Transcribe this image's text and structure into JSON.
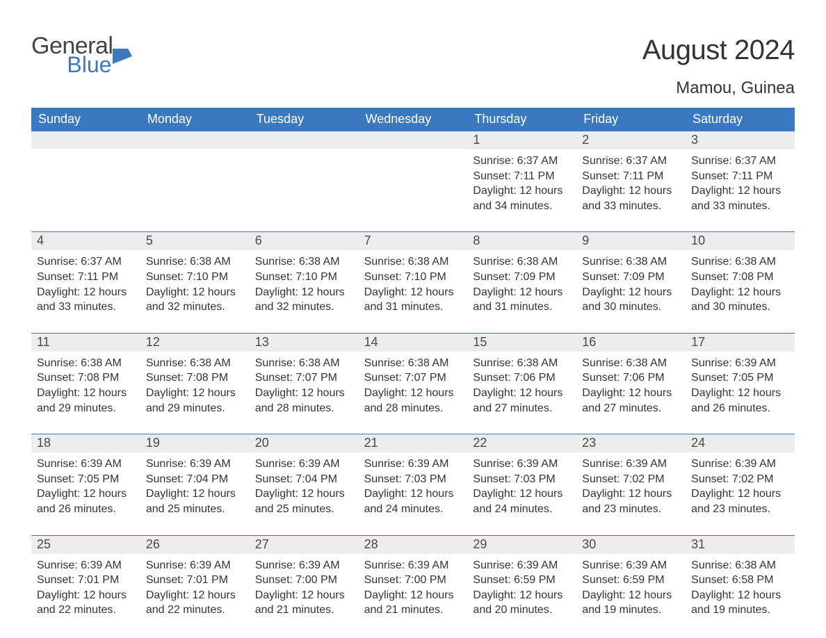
{
  "logo": {
    "general": "General",
    "blue": "Blue",
    "flag_color": "#3a78bf"
  },
  "title": "August 2024",
  "location": "Mamou, Guinea",
  "colors": {
    "header_bg": "#3a78bf",
    "header_text": "#ffffff",
    "daynum_bg": "#ededed",
    "body_text": "#333333",
    "border": "#3a78bf"
  },
  "day_headers": [
    "Sunday",
    "Monday",
    "Tuesday",
    "Wednesday",
    "Thursday",
    "Friday",
    "Saturday"
  ],
  "weeks": [
    [
      {
        "empty": true
      },
      {
        "empty": true
      },
      {
        "empty": true
      },
      {
        "empty": true
      },
      {
        "day": "1",
        "sunrise": "Sunrise: 6:37 AM",
        "sunset": "Sunset: 7:11 PM",
        "daylight": "Daylight: 12 hours and 34 minutes."
      },
      {
        "day": "2",
        "sunrise": "Sunrise: 6:37 AM",
        "sunset": "Sunset: 7:11 PM",
        "daylight": "Daylight: 12 hours and 33 minutes."
      },
      {
        "day": "3",
        "sunrise": "Sunrise: 6:37 AM",
        "sunset": "Sunset: 7:11 PM",
        "daylight": "Daylight: 12 hours and 33 minutes."
      }
    ],
    [
      {
        "day": "4",
        "sunrise": "Sunrise: 6:37 AM",
        "sunset": "Sunset: 7:11 PM",
        "daylight": "Daylight: 12 hours and 33 minutes."
      },
      {
        "day": "5",
        "sunrise": "Sunrise: 6:38 AM",
        "sunset": "Sunset: 7:10 PM",
        "daylight": "Daylight: 12 hours and 32 minutes."
      },
      {
        "day": "6",
        "sunrise": "Sunrise: 6:38 AM",
        "sunset": "Sunset: 7:10 PM",
        "daylight": "Daylight: 12 hours and 32 minutes."
      },
      {
        "day": "7",
        "sunrise": "Sunrise: 6:38 AM",
        "sunset": "Sunset: 7:10 PM",
        "daylight": "Daylight: 12 hours and 31 minutes."
      },
      {
        "day": "8",
        "sunrise": "Sunrise: 6:38 AM",
        "sunset": "Sunset: 7:09 PM",
        "daylight": "Daylight: 12 hours and 31 minutes."
      },
      {
        "day": "9",
        "sunrise": "Sunrise: 6:38 AM",
        "sunset": "Sunset: 7:09 PM",
        "daylight": "Daylight: 12 hours and 30 minutes."
      },
      {
        "day": "10",
        "sunrise": "Sunrise: 6:38 AM",
        "sunset": "Sunset: 7:08 PM",
        "daylight": "Daylight: 12 hours and 30 minutes."
      }
    ],
    [
      {
        "day": "11",
        "sunrise": "Sunrise: 6:38 AM",
        "sunset": "Sunset: 7:08 PM",
        "daylight": "Daylight: 12 hours and 29 minutes."
      },
      {
        "day": "12",
        "sunrise": "Sunrise: 6:38 AM",
        "sunset": "Sunset: 7:08 PM",
        "daylight": "Daylight: 12 hours and 29 minutes."
      },
      {
        "day": "13",
        "sunrise": "Sunrise: 6:38 AM",
        "sunset": "Sunset: 7:07 PM",
        "daylight": "Daylight: 12 hours and 28 minutes."
      },
      {
        "day": "14",
        "sunrise": "Sunrise: 6:38 AM",
        "sunset": "Sunset: 7:07 PM",
        "daylight": "Daylight: 12 hours and 28 minutes."
      },
      {
        "day": "15",
        "sunrise": "Sunrise: 6:38 AM",
        "sunset": "Sunset: 7:06 PM",
        "daylight": "Daylight: 12 hours and 27 minutes."
      },
      {
        "day": "16",
        "sunrise": "Sunrise: 6:38 AM",
        "sunset": "Sunset: 7:06 PM",
        "daylight": "Daylight: 12 hours and 27 minutes."
      },
      {
        "day": "17",
        "sunrise": "Sunrise: 6:39 AM",
        "sunset": "Sunset: 7:05 PM",
        "daylight": "Daylight: 12 hours and 26 minutes."
      }
    ],
    [
      {
        "day": "18",
        "sunrise": "Sunrise: 6:39 AM",
        "sunset": "Sunset: 7:05 PM",
        "daylight": "Daylight: 12 hours and 26 minutes."
      },
      {
        "day": "19",
        "sunrise": "Sunrise: 6:39 AM",
        "sunset": "Sunset: 7:04 PM",
        "daylight": "Daylight: 12 hours and 25 minutes."
      },
      {
        "day": "20",
        "sunrise": "Sunrise: 6:39 AM",
        "sunset": "Sunset: 7:04 PM",
        "daylight": "Daylight: 12 hours and 25 minutes."
      },
      {
        "day": "21",
        "sunrise": "Sunrise: 6:39 AM",
        "sunset": "Sunset: 7:03 PM",
        "daylight": "Daylight: 12 hours and 24 minutes."
      },
      {
        "day": "22",
        "sunrise": "Sunrise: 6:39 AM",
        "sunset": "Sunset: 7:03 PM",
        "daylight": "Daylight: 12 hours and 24 minutes."
      },
      {
        "day": "23",
        "sunrise": "Sunrise: 6:39 AM",
        "sunset": "Sunset: 7:02 PM",
        "daylight": "Daylight: 12 hours and 23 minutes."
      },
      {
        "day": "24",
        "sunrise": "Sunrise: 6:39 AM",
        "sunset": "Sunset: 7:02 PM",
        "daylight": "Daylight: 12 hours and 23 minutes."
      }
    ],
    [
      {
        "day": "25",
        "sunrise": "Sunrise: 6:39 AM",
        "sunset": "Sunset: 7:01 PM",
        "daylight": "Daylight: 12 hours and 22 minutes."
      },
      {
        "day": "26",
        "sunrise": "Sunrise: 6:39 AM",
        "sunset": "Sunset: 7:01 PM",
        "daylight": "Daylight: 12 hours and 22 minutes."
      },
      {
        "day": "27",
        "sunrise": "Sunrise: 6:39 AM",
        "sunset": "Sunset: 7:00 PM",
        "daylight": "Daylight: 12 hours and 21 minutes."
      },
      {
        "day": "28",
        "sunrise": "Sunrise: 6:39 AM",
        "sunset": "Sunset: 7:00 PM",
        "daylight": "Daylight: 12 hours and 21 minutes."
      },
      {
        "day": "29",
        "sunrise": "Sunrise: 6:39 AM",
        "sunset": "Sunset: 6:59 PM",
        "daylight": "Daylight: 12 hours and 20 minutes."
      },
      {
        "day": "30",
        "sunrise": "Sunrise: 6:39 AM",
        "sunset": "Sunset: 6:59 PM",
        "daylight": "Daylight: 12 hours and 19 minutes."
      },
      {
        "day": "31",
        "sunrise": "Sunrise: 6:38 AM",
        "sunset": "Sunset: 6:58 PM",
        "daylight": "Daylight: 12 hours and 19 minutes."
      }
    ]
  ]
}
